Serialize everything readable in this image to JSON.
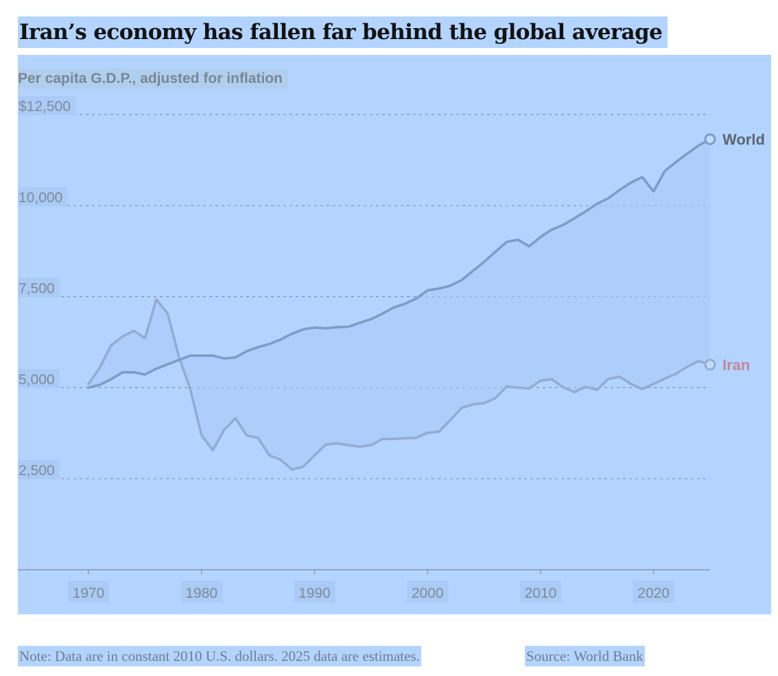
{
  "title": "Iran’s economy has fallen far behind the global average",
  "subtitle": "Per capita G.D.P., adjusted for inflation",
  "note": "Note: Data are in constant 2010 U.S. dollars. 2025 data are estimates.",
  "source": "Source: World Bank",
  "colors": {
    "highlight": "#b3d4ff",
    "world_line": "#7f9bc6",
    "iran_line": "#94acd0",
    "iran_label": "#c0889c",
    "world_label": "#5d6470",
    "grid": "#8795a8",
    "tick_text": "#7f8a99"
  },
  "chart_data": {
    "type": "line",
    "title": "Iran’s economy has fallen far behind the global average",
    "ylabel": "Per capita G.D.P., adjusted for inflation",
    "xlabel": "",
    "xlim": [
      1970,
      2025
    ],
    "ylim": [
      0,
      12500
    ],
    "y_ticks": [
      {
        "value": 12500,
        "label": "$12,500"
      },
      {
        "value": 10000,
        "label": "10,000"
      },
      {
        "value": 7500,
        "label": "7,500"
      },
      {
        "value": 5000,
        "label": "5,000"
      },
      {
        "value": 2500,
        "label": "2,500"
      }
    ],
    "x_ticks": [
      {
        "value": 1970,
        "label": "1970"
      },
      {
        "value": 1980,
        "label": "1980"
      },
      {
        "value": 1990,
        "label": "1990"
      },
      {
        "value": 2000,
        "label": "2000"
      },
      {
        "value": 2010,
        "label": "2010"
      },
      {
        "value": 2020,
        "label": "2020"
      }
    ],
    "grid": "horizontal dashed",
    "series": [
      {
        "name": "World",
        "x": [
          1970,
          1971,
          1972,
          1973,
          1974,
          1975,
          1976,
          1977,
          1978,
          1979,
          1980,
          1981,
          1982,
          1983,
          1984,
          1985,
          1986,
          1987,
          1988,
          1989,
          1990,
          1991,
          1992,
          1993,
          1994,
          1995,
          1996,
          1997,
          1998,
          1999,
          2000,
          2001,
          2002,
          2003,
          2004,
          2005,
          2006,
          2007,
          2008,
          2009,
          2010,
          2011,
          2012,
          2013,
          2014,
          2015,
          2016,
          2017,
          2018,
          2019,
          2020,
          2021,
          2022,
          2023,
          2024,
          2025
        ],
        "values": [
          5000,
          5080,
          5230,
          5420,
          5420,
          5360,
          5520,
          5640,
          5760,
          5880,
          5880,
          5880,
          5800,
          5830,
          6000,
          6110,
          6200,
          6320,
          6480,
          6600,
          6650,
          6630,
          6660,
          6670,
          6780,
          6880,
          7030,
          7200,
          7300,
          7450,
          7670,
          7720,
          7800,
          7950,
          8200,
          8450,
          8730,
          9000,
          9060,
          8880,
          9140,
          9340,
          9470,
          9650,
          9840,
          10050,
          10200,
          10430,
          10630,
          10780,
          10390,
          10950,
          11200,
          11430,
          11650,
          11820
        ]
      },
      {
        "name": "Iran",
        "x": [
          1970,
          1971,
          1972,
          1973,
          1974,
          1975,
          1976,
          1977,
          1978,
          1979,
          1980,
          1981,
          1982,
          1983,
          1984,
          1985,
          1986,
          1987,
          1988,
          1989,
          1990,
          1991,
          1992,
          1993,
          1994,
          1995,
          1996,
          1997,
          1998,
          1999,
          2000,
          2001,
          2002,
          2003,
          2004,
          2005,
          2006,
          2007,
          2008,
          2009,
          2010,
          2011,
          2012,
          2013,
          2014,
          2015,
          2016,
          2017,
          2018,
          2019,
          2020,
          2021,
          2022,
          2023,
          2024,
          2025
        ],
        "values": [
          5100,
          5550,
          6160,
          6400,
          6560,
          6360,
          7420,
          7040,
          5850,
          4960,
          3700,
          3280,
          3840,
          4160,
          3690,
          3620,
          3140,
          3020,
          2750,
          2830,
          3140,
          3440,
          3470,
          3420,
          3380,
          3420,
          3590,
          3590,
          3610,
          3620,
          3760,
          3790,
          4100,
          4440,
          4540,
          4570,
          4710,
          5030,
          5000,
          4980,
          5190,
          5230,
          5010,
          4880,
          5020,
          4940,
          5240,
          5300,
          5100,
          4960,
          5100,
          5250,
          5380,
          5580,
          5730,
          5630
        ]
      }
    ],
    "end_labels": {
      "World": "World",
      "Iran": "Iran"
    }
  }
}
